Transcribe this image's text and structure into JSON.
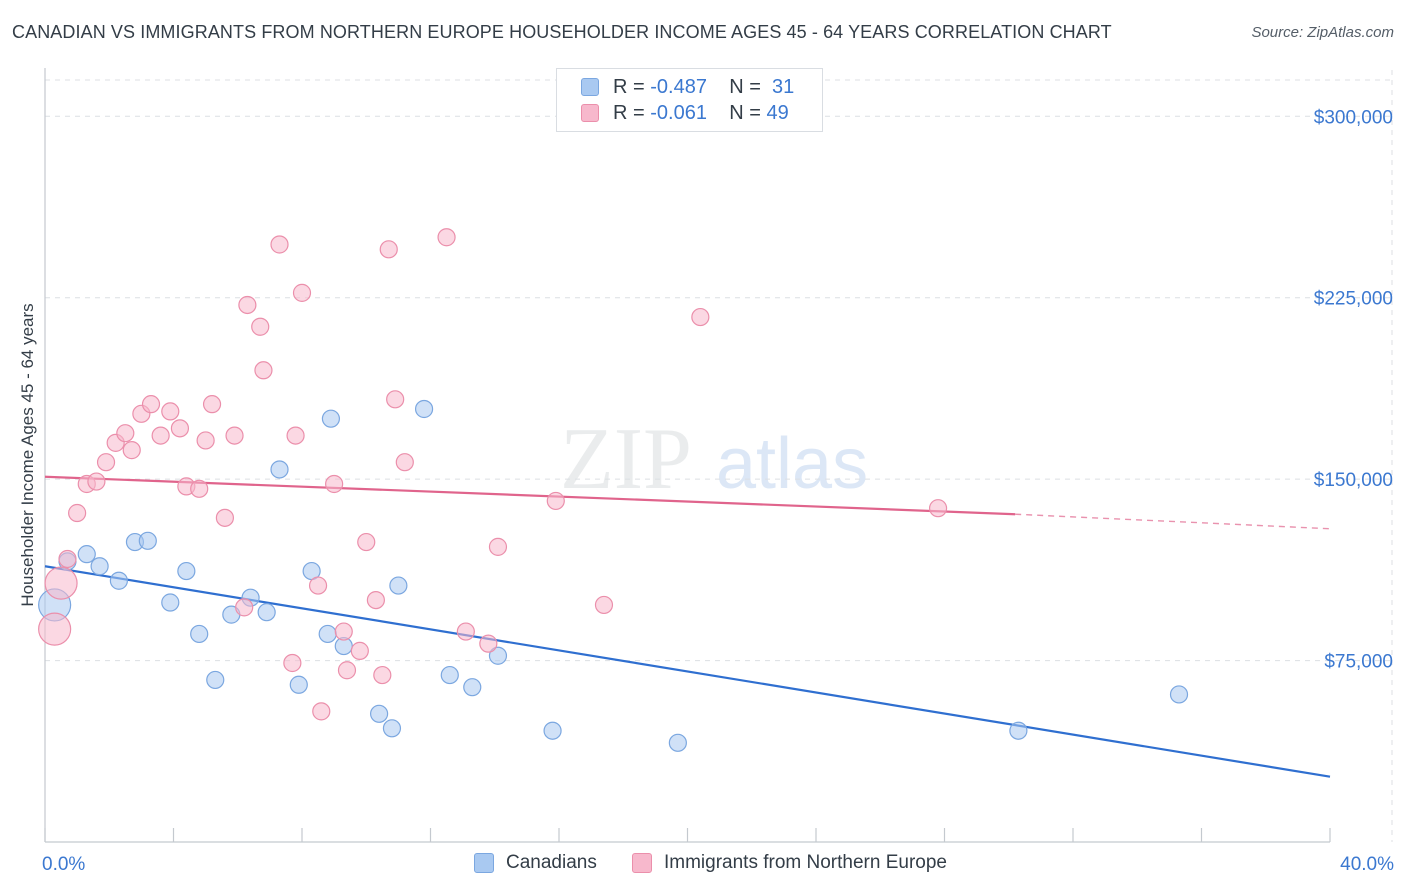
{
  "header": {
    "title": "CANADIAN VS IMMIGRANTS FROM NORTHERN EUROPE HOUSEHOLDER INCOME AGES 45 - 64 YEARS CORRELATION CHART",
    "source": "Source: ZipAtlas.com"
  },
  "watermark": {
    "zip": "ZIP",
    "atlas": "atlas"
  },
  "stats_legend": [
    {
      "r_label": "R = ",
      "r_value": "-0.487",
      "n_label": "N = ",
      "n_value": "31",
      "color": "#a9c9f1"
    },
    {
      "r_label": "R = ",
      "r_value": "-0.061",
      "n_label": "N = ",
      "n_value": "49",
      "color": "#f7b8cc"
    }
  ],
  "legend": [
    {
      "label": "Canadians",
      "color": "#a9c9f1"
    },
    {
      "label": "Immigrants from Northern Europe",
      "color": "#f7b8cc"
    }
  ],
  "colors": {
    "blue_fill": "#a9c9f1",
    "blue_stroke": "#7ba7e0",
    "blue_line": "#2f6fd0",
    "pink_fill": "#f7b8cc",
    "pink_stroke": "#eb8fab",
    "pink_line": "#e0648c",
    "tick_label": "#3b78d0",
    "grid": "#dcdfe3"
  },
  "chart_data": {
    "type": "scatter",
    "xlabel": "",
    "ylabel": "Householder Income Ages 45 - 64 years",
    "xlim": [
      0,
      40
    ],
    "ylim": [
      0,
      315000
    ],
    "x_tick_labels": [
      {
        "value": 0,
        "label": "0.0%"
      },
      {
        "value": 40,
        "label": "40.0%"
      }
    ],
    "y_tick_labels": [
      {
        "value": 75000,
        "label": "$75,000"
      },
      {
        "value": 150000,
        "label": "$150,000"
      },
      {
        "value": 225000,
        "label": "$225,000"
      },
      {
        "value": 300000,
        "label": "$300,000"
      }
    ],
    "grid": true,
    "legend_position": "bottom",
    "series": [
      {
        "name": "Canadians",
        "points": [
          [
            0.3,
            98000,
            "large"
          ],
          [
            0.7,
            116000
          ],
          [
            1.3,
            119000
          ],
          [
            1.7,
            114000
          ],
          [
            2.3,
            108000
          ],
          [
            2.8,
            124000
          ],
          [
            3.2,
            124500
          ],
          [
            3.9,
            99000
          ],
          [
            4.4,
            112000
          ],
          [
            4.8,
            86000
          ],
          [
            5.3,
            67000
          ],
          [
            5.8,
            94000
          ],
          [
            6.4,
            101000
          ],
          [
            6.9,
            95000
          ],
          [
            7.3,
            154000
          ],
          [
            7.9,
            65000
          ],
          [
            8.3,
            112000
          ],
          [
            8.8,
            86000
          ],
          [
            8.9,
            175000
          ],
          [
            9.3,
            81000
          ],
          [
            10.4,
            53000
          ],
          [
            10.8,
            47000
          ],
          [
            11.0,
            106000
          ],
          [
            11.8,
            179000
          ],
          [
            12.6,
            69000
          ],
          [
            13.3,
            64000
          ],
          [
            14.1,
            77000
          ],
          [
            15.8,
            46000
          ],
          [
            19.7,
            41000
          ],
          [
            30.3,
            46000
          ],
          [
            35.3,
            61000
          ]
        ]
      },
      {
        "name": "Immigrants from Northern Europe",
        "points": [
          [
            0.3,
            88000,
            "large"
          ],
          [
            0.5,
            107000,
            "large"
          ],
          [
            0.7,
            117000
          ],
          [
            1.0,
            136000
          ],
          [
            1.3,
            148000
          ],
          [
            1.6,
            149000
          ],
          [
            1.9,
            157000
          ],
          [
            2.2,
            165000
          ],
          [
            2.5,
            169000
          ],
          [
            2.7,
            162000
          ],
          [
            3.0,
            177000
          ],
          [
            3.3,
            181000
          ],
          [
            3.6,
            168000
          ],
          [
            3.9,
            178000
          ],
          [
            4.2,
            171000
          ],
          [
            4.4,
            147000
          ],
          [
            4.8,
            146000
          ],
          [
            5.0,
            166000
          ],
          [
            5.2,
            181000
          ],
          [
            5.6,
            134000
          ],
          [
            5.9,
            168000
          ],
          [
            6.2,
            97000
          ],
          [
            6.3,
            222000
          ],
          [
            6.7,
            213000
          ],
          [
            6.8,
            195000
          ],
          [
            7.3,
            247000
          ],
          [
            7.7,
            74000
          ],
          [
            7.8,
            168000
          ],
          [
            8.0,
            227000
          ],
          [
            8.5,
            106000
          ],
          [
            8.6,
            54000
          ],
          [
            9.0,
            148000
          ],
          [
            9.3,
            87000
          ],
          [
            9.4,
            71000
          ],
          [
            9.8,
            79000
          ],
          [
            10.0,
            124000
          ],
          [
            10.3,
            100000
          ],
          [
            10.5,
            69000
          ],
          [
            10.9,
            183000
          ],
          [
            10.7,
            245000
          ],
          [
            11.2,
            157000
          ],
          [
            12.5,
            250000
          ],
          [
            13.1,
            87000
          ],
          [
            13.8,
            82000
          ],
          [
            14.1,
            122000
          ],
          [
            15.9,
            141000
          ],
          [
            17.4,
            98000
          ],
          [
            20.4,
            217000
          ],
          [
            27.8,
            138000
          ]
        ]
      }
    ],
    "trend_lines": [
      {
        "series": "Canadians",
        "from": [
          0,
          114000
        ],
        "to": [
          40,
          27000
        ]
      },
      {
        "series": "Immigrants from Northern Europe",
        "from": [
          0,
          151000
        ],
        "to": [
          30.2,
          135500
        ],
        "dashed_to": [
          40,
          129500
        ]
      }
    ]
  }
}
